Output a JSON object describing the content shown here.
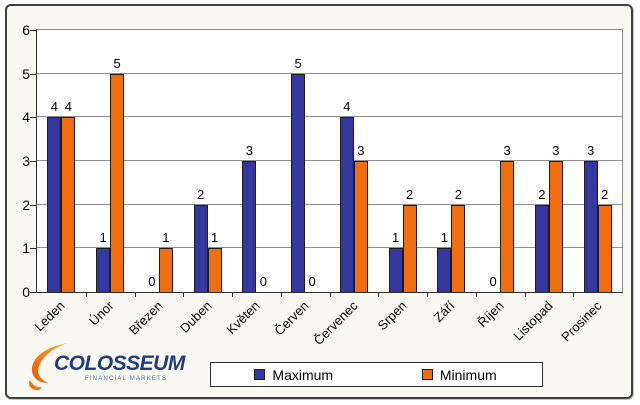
{
  "chart_data": {
    "type": "bar",
    "title": "",
    "xlabel": "",
    "ylabel": "",
    "categories": [
      "Leden",
      "Únor",
      "Březen",
      "Duben",
      "Květen",
      "Červen",
      "Červenec",
      "Srpen",
      "Září",
      "Říjen",
      "Listopad",
      "Prosinec"
    ],
    "series": [
      {
        "name": "Maximum",
        "color": "#3437a0",
        "values": [
          4,
          1,
          0,
          2,
          3,
          5,
          4,
          1,
          1,
          0,
          2,
          3
        ]
      },
      {
        "name": "Minimum",
        "color": "#f06e0e",
        "values": [
          4,
          5,
          1,
          1,
          0,
          0,
          3,
          2,
          2,
          3,
          3,
          2
        ]
      }
    ],
    "ylim": [
      0,
      6
    ],
    "yticks": [
      0,
      1,
      2,
      3,
      4,
      5,
      6
    ],
    "grid": true,
    "value_labels": true,
    "legend_position": "bottom"
  },
  "legend": {
    "maximum": "Maximum",
    "minimum": "Minimum"
  },
  "logo": {
    "text": "COLOSSEUM",
    "subtitle": "FINANCIAL MARKETS"
  }
}
